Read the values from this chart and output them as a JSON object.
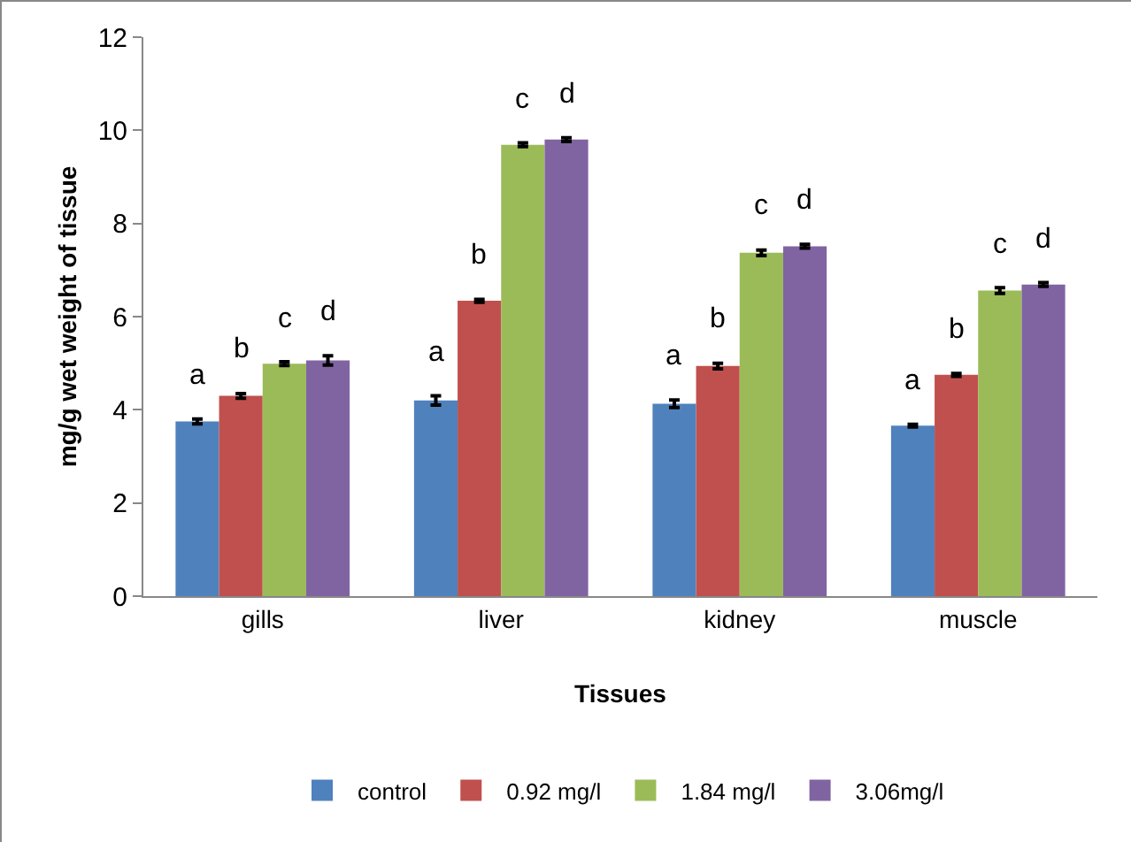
{
  "chart_data": {
    "type": "bar",
    "xlabel": "Tissues",
    "ylabel": "mg/g wet weight of tissue",
    "categories": [
      "gills",
      "liver",
      "kidney",
      "muscle"
    ],
    "series": [
      {
        "name": "control",
        "color": "#4f81bd",
        "values": [
          3.75,
          4.2,
          4.13,
          3.66
        ],
        "errors": [
          0.05,
          0.1,
          0.08,
          0.03
        ],
        "value_labels": [
          "a",
          "a",
          "a",
          "a"
        ]
      },
      {
        "name": "0.92 mg/l",
        "color": "#c0504d",
        "values": [
          4.3,
          6.34,
          4.94,
          4.75
        ],
        "errors": [
          0.05,
          0.03,
          0.06,
          0.03
        ],
        "value_labels": [
          "b",
          "b",
          "b",
          "b"
        ]
      },
      {
        "name": "1.84 mg/l",
        "color": "#9bbb59",
        "values": [
          4.99,
          9.69,
          7.37,
          6.56
        ],
        "errors": [
          0.04,
          0.04,
          0.06,
          0.06
        ],
        "value_labels": [
          "c",
          "c",
          "c",
          "c"
        ]
      },
      {
        "name": "3.06mg/l",
        "color": "#8064a2",
        "values": [
          5.06,
          9.8,
          7.51,
          6.69
        ],
        "errors": [
          0.1,
          0.04,
          0.04,
          0.04
        ],
        "value_labels": [
          "d",
          "d",
          "d",
          "d"
        ]
      }
    ],
    "ylim": [
      0,
      12
    ],
    "yticks": [
      0,
      2,
      4,
      6,
      8,
      10,
      12
    ],
    "grid": false,
    "legend": "bottom"
  }
}
